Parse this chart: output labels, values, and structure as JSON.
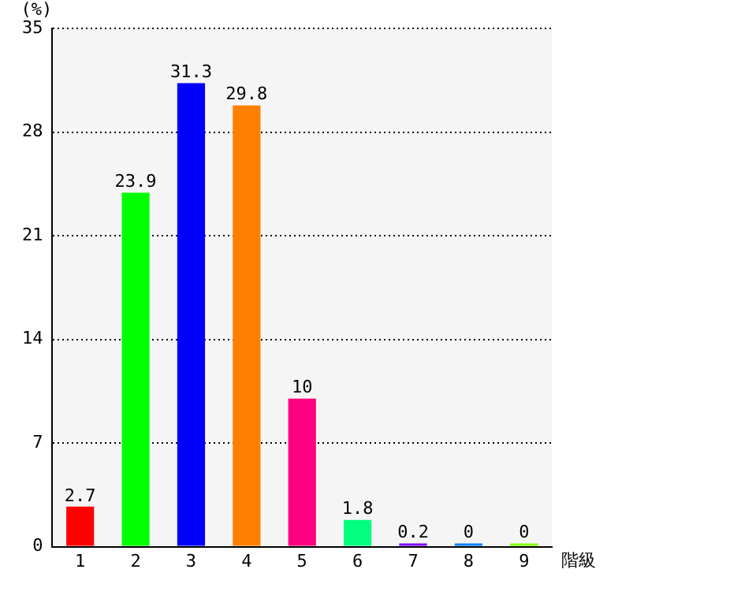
{
  "chart_data": {
    "type": "bar",
    "xlabel": "階級",
    "ylabel": "(%)",
    "categories": [
      "1",
      "2",
      "3",
      "4",
      "5",
      "6",
      "7",
      "8",
      "9"
    ],
    "values": [
      2.7,
      23.9,
      31.3,
      29.8,
      10,
      1.8,
      0.2,
      0,
      0
    ],
    "colors": [
      "#ff0000",
      "#00ff00",
      "#0000ff",
      "#ff8000",
      "#ff0080",
      "#00ff80",
      "#8000ff",
      "#0080ff",
      "#80ff00"
    ],
    "ylim": [
      0,
      35
    ],
    "yticks": [
      0,
      7,
      14,
      21,
      28,
      35
    ],
    "grid": "y",
    "data_labels": true,
    "legend": false
  }
}
